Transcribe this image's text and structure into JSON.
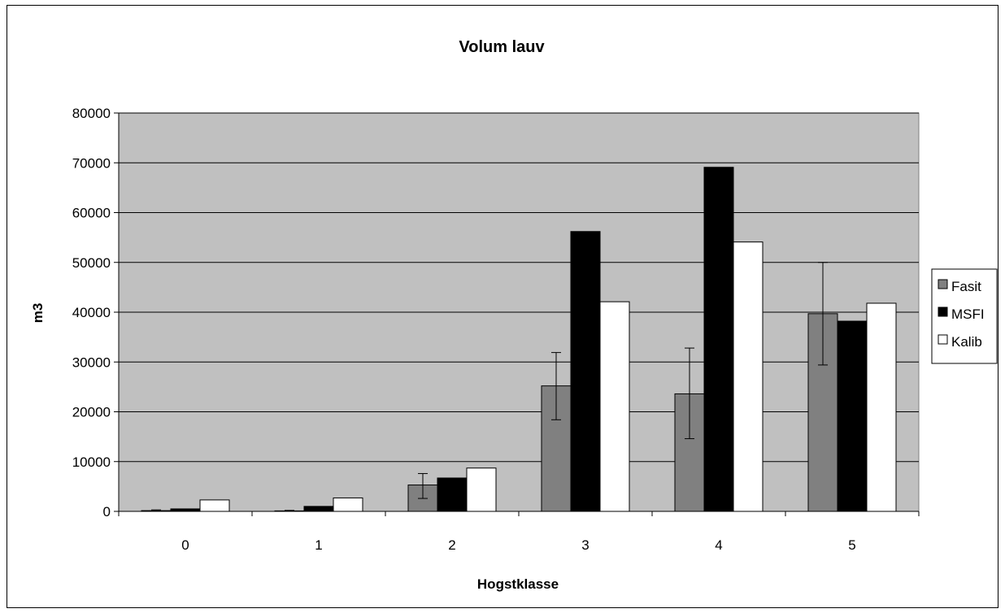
{
  "chart_data": {
    "type": "bar",
    "title": "Volum lauv",
    "xlabel": "Hogstklasse",
    "ylabel": "m3",
    "categories": [
      "0",
      "1",
      "2",
      "3",
      "4",
      "5"
    ],
    "ylim": [
      0,
      80000
    ],
    "yticks": [
      "0",
      "10000",
      "20000",
      "30000",
      "40000",
      "50000",
      "60000",
      "70000",
      "80000"
    ],
    "grid": true,
    "legend_position": "right",
    "plot_background": "#c0c0c0",
    "series": [
      {
        "name": "Fasit",
        "color": "#808080",
        "values": [
          150,
          100,
          5300,
          25200,
          23600,
          39700
        ],
        "error_low": [
          150,
          100,
          2700,
          6800,
          9000,
          10300
        ],
        "error_high": [
          150,
          100,
          2300,
          6700,
          9200,
          10300
        ]
      },
      {
        "name": "MSFI",
        "color": "#000000",
        "values": [
          500,
          1000,
          6700,
          56200,
          69100,
          38200
        ]
      },
      {
        "name": "Kalib",
        "color": "#ffffff",
        "values": [
          2300,
          2700,
          8700,
          42100,
          54100,
          41800
        ]
      }
    ]
  }
}
